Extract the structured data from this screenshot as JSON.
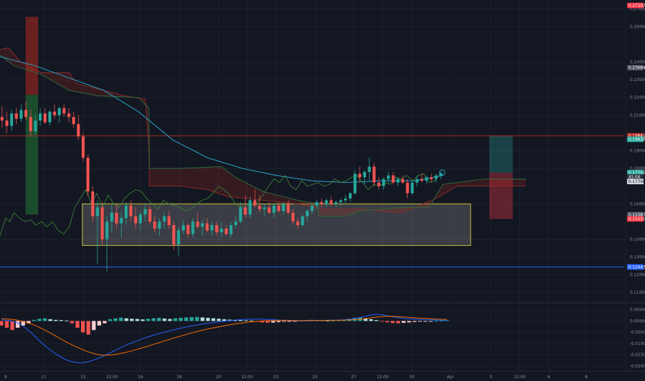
{
  "chart_data": [
    {
      "type": "line",
      "chart_style": "candlestick price chart with Ichimoku cloud, moving averages and range/position drawings",
      "grid": true,
      "x_tick_labels": [
        "9",
        "11",
        "13",
        "12:00",
        "16",
        "18",
        "20",
        "12:00",
        "23",
        "25",
        "27",
        "12:00",
        "30",
        "Apr",
        "3",
        "12:00",
        "6",
        "8"
      ],
      "y_tick_labels": [
        "0.27000",
        "0.26000",
        "0.24000",
        "0.23000",
        "0.22000",
        "0.21000",
        "0.19000",
        "0.18000",
        "0.16000",
        "0.14000",
        "0.13000",
        "0.12000",
        "0.11000"
      ],
      "ylim": [
        0.105,
        0.275
      ],
      "price_tags": [
        {
          "label": "0.27197",
          "value": 0.2719,
          "color": "#f23645"
        },
        {
          "label": "0.23684",
          "value": 0.2368,
          "color": "#4b4f5b"
        },
        {
          "label": "0.19841",
          "value": 0.1984,
          "color": "#b2281d"
        },
        {
          "label": "0.19636",
          "value": 0.1964,
          "color": "#26a69a"
        },
        {
          "label": "0.17755",
          "value": 0.1776,
          "color": "#26a69a"
        },
        {
          "label": "45:06",
          "value": 0.1751,
          "color": "#2c313d"
        },
        {
          "label": "0.17740",
          "value": 0.1726,
          "color": "#d1d4dc"
        },
        {
          "label": "0.15387",
          "value": 0.1539,
          "color": "#4b4f5b"
        },
        {
          "label": "0.15151",
          "value": 0.1515,
          "color": "#f23645"
        },
        {
          "label": "0.12443",
          "value": 0.1244,
          "color": "#2962ff"
        }
      ],
      "horizontal_lines": [
        {
          "value": 0.1984,
          "color": "#b2281d"
        },
        {
          "value": 0.1244,
          "color": "#2962ff"
        }
      ],
      "candles_ohlc": [
        [
          0.209,
          0.215,
          0.203,
          0.207
        ],
        [
          0.207,
          0.212,
          0.2,
          0.204
        ],
        [
          0.204,
          0.213,
          0.201,
          0.211
        ],
        [
          0.211,
          0.214,
          0.205,
          0.208
        ],
        [
          0.208,
          0.216,
          0.206,
          0.213
        ],
        [
          0.213,
          0.218,
          0.207,
          0.209
        ],
        [
          0.209,
          0.213,
          0.198,
          0.201
        ],
        [
          0.201,
          0.21,
          0.199,
          0.207
        ],
        [
          0.207,
          0.214,
          0.204,
          0.211
        ],
        [
          0.211,
          0.214,
          0.205,
          0.206
        ],
        [
          0.206,
          0.213,
          0.204,
          0.212
        ],
        [
          0.212,
          0.216,
          0.208,
          0.21
        ],
        [
          0.21,
          0.215,
          0.206,
          0.214
        ],
        [
          0.214,
          0.216,
          0.209,
          0.211
        ],
        [
          0.211,
          0.214,
          0.206,
          0.209
        ],
        [
          0.209,
          0.212,
          0.203,
          0.205
        ],
        [
          0.205,
          0.21,
          0.196,
          0.198
        ],
        [
          0.198,
          0.2,
          0.184,
          0.186
        ],
        [
          0.186,
          0.188,
          0.164,
          0.167
        ],
        [
          0.167,
          0.17,
          0.15,
          0.153
        ],
        [
          0.153,
          0.162,
          0.126,
          0.158
        ],
        [
          0.158,
          0.161,
          0.137,
          0.14
        ],
        [
          0.14,
          0.153,
          0.122,
          0.15
        ],
        [
          0.15,
          0.159,
          0.144,
          0.155
        ],
        [
          0.155,
          0.16,
          0.146,
          0.149
        ],
        [
          0.149,
          0.156,
          0.141,
          0.152
        ],
        [
          0.152,
          0.161,
          0.148,
          0.159
        ],
        [
          0.159,
          0.162,
          0.15,
          0.153
        ],
        [
          0.153,
          0.158,
          0.146,
          0.149
        ],
        [
          0.149,
          0.156,
          0.145,
          0.154
        ],
        [
          0.154,
          0.16,
          0.15,
          0.157
        ],
        [
          0.157,
          0.159,
          0.148,
          0.15
        ],
        [
          0.15,
          0.153,
          0.144,
          0.146
        ],
        [
          0.146,
          0.152,
          0.142,
          0.15
        ],
        [
          0.15,
          0.155,
          0.146,
          0.153
        ],
        [
          0.153,
          0.156,
          0.146,
          0.148
        ],
        [
          0.148,
          0.15,
          0.134,
          0.137
        ],
        [
          0.137,
          0.147,
          0.131,
          0.145
        ],
        [
          0.145,
          0.151,
          0.143,
          0.148
        ],
        [
          0.148,
          0.149,
          0.141,
          0.143
        ],
        [
          0.143,
          0.152,
          0.141,
          0.15
        ],
        [
          0.15,
          0.155,
          0.146,
          0.147
        ],
        [
          0.147,
          0.151,
          0.142,
          0.149
        ],
        [
          0.149,
          0.152,
          0.144,
          0.145
        ],
        [
          0.145,
          0.15,
          0.142,
          0.148
        ],
        [
          0.148,
          0.15,
          0.142,
          0.144
        ],
        [
          0.144,
          0.15,
          0.141,
          0.146
        ],
        [
          0.146,
          0.148,
          0.142,
          0.143
        ],
        [
          0.143,
          0.15,
          0.141,
          0.148
        ],
        [
          0.148,
          0.153,
          0.146,
          0.15
        ],
        [
          0.15,
          0.161,
          0.149,
          0.158
        ],
        [
          0.158,
          0.165,
          0.152,
          0.154
        ],
        [
          0.154,
          0.164,
          0.152,
          0.162
        ],
        [
          0.162,
          0.168,
          0.158,
          0.159
        ],
        [
          0.159,
          0.165,
          0.155,
          0.157
        ],
        [
          0.157,
          0.16,
          0.153,
          0.158
        ],
        [
          0.158,
          0.161,
          0.154,
          0.155
        ],
        [
          0.155,
          0.16,
          0.152,
          0.159
        ],
        [
          0.159,
          0.161,
          0.155,
          0.156
        ],
        [
          0.156,
          0.161,
          0.154,
          0.16
        ],
        [
          0.16,
          0.162,
          0.154,
          0.155
        ],
        [
          0.155,
          0.157,
          0.148,
          0.15
        ],
        [
          0.15,
          0.152,
          0.146,
          0.148
        ],
        [
          0.148,
          0.154,
          0.147,
          0.153
        ],
        [
          0.153,
          0.157,
          0.15,
          0.156
        ],
        [
          0.156,
          0.16,
          0.154,
          0.159
        ],
        [
          0.159,
          0.162,
          0.157,
          0.161
        ],
        [
          0.161,
          0.163,
          0.158,
          0.16
        ],
        [
          0.16,
          0.163,
          0.158,
          0.162
        ],
        [
          0.162,
          0.164,
          0.159,
          0.16
        ],
        [
          0.16,
          0.162,
          0.158,
          0.161
        ],
        [
          0.161,
          0.163,
          0.159,
          0.162
        ],
        [
          0.162,
          0.165,
          0.16,
          0.163
        ],
        [
          0.163,
          0.167,
          0.161,
          0.166
        ],
        [
          0.166,
          0.179,
          0.165,
          0.177
        ],
        [
          0.177,
          0.181,
          0.172,
          0.175
        ],
        [
          0.175,
          0.179,
          0.171,
          0.178
        ],
        [
          0.178,
          0.186,
          0.173,
          0.181
        ],
        [
          0.181,
          0.183,
          0.17,
          0.172
        ],
        [
          0.172,
          0.175,
          0.168,
          0.17
        ],
        [
          0.17,
          0.175,
          0.168,
          0.174
        ],
        [
          0.174,
          0.178,
          0.172,
          0.176
        ],
        [
          0.176,
          0.178,
          0.171,
          0.172
        ],
        [
          0.172,
          0.175,
          0.17,
          0.174
        ],
        [
          0.174,
          0.176,
          0.171,
          0.172
        ],
        [
          0.172,
          0.174,
          0.163,
          0.166
        ],
        [
          0.166,
          0.173,
          0.165,
          0.172
        ],
        [
          0.172,
          0.176,
          0.17,
          0.174
        ],
        [
          0.174,
          0.177,
          0.172,
          0.173
        ],
        [
          0.173,
          0.176,
          0.171,
          0.175
        ],
        [
          0.175,
          0.177,
          0.172,
          0.174
        ],
        [
          0.174,
          0.177,
          0.172,
          0.176
        ],
        [
          0.176,
          0.178,
          0.174,
          0.1774
        ]
      ]
    },
    {
      "type": "line",
      "chart_style": "MACD oscillator with histogram",
      "grid": true,
      "y_tick_labels": [
        "0.00500",
        "0.00000",
        "-0.00500",
        "-0.01000",
        "-0.01500",
        "-0.02000"
      ],
      "ylim": [
        -0.0223,
        0.0078
      ],
      "histogram": [
        -0.002,
        -0.003,
        -0.004,
        -0.003,
        -0.002,
        -0.001,
        0.0005,
        0.001,
        0.0012,
        0.0008,
        0.0005,
        0.0004,
        0.0002,
        -0.001,
        -0.003,
        -0.005,
        -0.006,
        -0.004,
        -0.002,
        -0.001,
        0.0008,
        0.0012,
        0.0015,
        0.0012,
        0.001,
        0.0009,
        0.0007,
        0.001,
        0.0012,
        0.0014,
        0.0011,
        0.0009,
        0.0012,
        0.0014,
        0.0016,
        0.0017,
        0.0018,
        0.0016,
        0.0014,
        0.0012,
        0.001,
        0.0008,
        0.0006,
        0.0005,
        0.0004,
        0.0003,
        0.0002,
        -0.0002,
        -0.0006,
        -0.0008,
        -0.0007,
        -0.0005,
        -0.0003,
        -0.0002,
        -0.0001,
        0.0002,
        0.0004,
        0.0005,
        0.0004,
        0.0003,
        0.0002,
        0.0002,
        0.0003,
        0.0006,
        0.001,
        0.0014,
        0.0016,
        0.0012,
        0.0008,
        0.0004,
        -0.0002,
        -0.0006,
        -0.0009,
        -0.001,
        -0.0008,
        -0.0006,
        -0.0004,
        -0.0003,
        -0.0002,
        -0.0001,
        0.0001,
        0.0002,
        0.0003
      ],
      "macd_line": [
        0.0005,
        0.0002,
        -0.0008,
        -0.003,
        -0.006,
        -0.0095,
        -0.0125,
        -0.015,
        -0.017,
        -0.0182,
        -0.0186,
        -0.018,
        -0.0168,
        -0.0152,
        -0.0135,
        -0.0118,
        -0.0102,
        -0.0088,
        -0.0075,
        -0.0064,
        -0.0054,
        -0.0045,
        -0.0036,
        -0.0028,
        -0.0021,
        -0.0015,
        -0.001,
        -0.0005,
        -0.0001,
        0.0003,
        0.0006,
        0.0008,
        0.0009,
        0.0008,
        0.0006,
        0.0004,
        0.0002,
        0.0001,
        0.0,
        0.0001,
        0.0002,
        0.0003,
        0.0004,
        0.0005,
        0.0008,
        0.0015,
        0.0024,
        0.003,
        0.0027,
        0.002,
        0.0014,
        0.001,
        0.0008,
        0.0006,
        0.0005,
        0.0004,
        0.0003
      ],
      "signal_line": [
        0.001,
        0.0008,
        0.0004,
        -0.0004,
        -0.0016,
        -0.0032,
        -0.005,
        -0.007,
        -0.009,
        -0.0108,
        -0.0124,
        -0.0138,
        -0.0148,
        -0.0152,
        -0.015,
        -0.0144,
        -0.0136,
        -0.0126,
        -0.0116,
        -0.0105,
        -0.0094,
        -0.0083,
        -0.0072,
        -0.0062,
        -0.0052,
        -0.0043,
        -0.0035,
        -0.0028,
        -0.0021,
        -0.0015,
        -0.001,
        -0.0005,
        -0.0002,
        0.0001,
        0.0002,
        0.0003,
        0.0003,
        0.0002,
        0.0002,
        0.0002,
        0.0002,
        0.0003,
        0.0003,
        0.0004,
        0.0005,
        0.0008,
        0.0012,
        0.0017,
        0.002,
        0.0021,
        0.0019,
        0.0017,
        0.0014,
        0.0012,
        0.001,
        0.0008,
        0.0007
      ]
    }
  ]
}
